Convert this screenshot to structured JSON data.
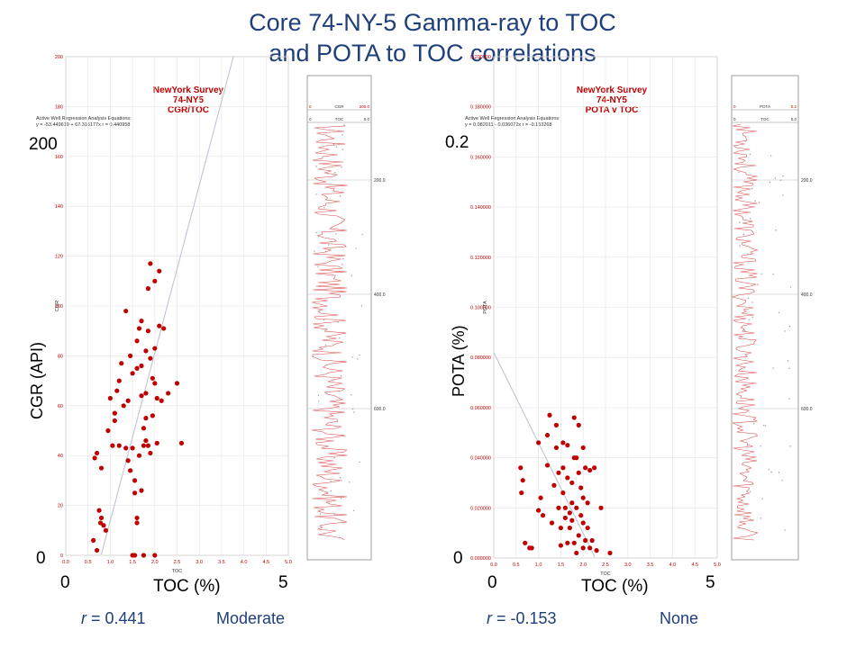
{
  "title": {
    "line1": "Core 74-NY-5 Gamma-ray to TOC",
    "line2": "and POTA to TOC correlations"
  },
  "left": {
    "header": [
      "NewYork Survey",
      "74-NY5",
      "CGR/TOC"
    ],
    "eq_head": "Active Well Regression Analysis Equations:",
    "eq": "y = -53.449619 + 67.316177x    r = 0.440958",
    "ylabel_big": "CGR (API)",
    "ylabel_small": "CGR",
    "xlabel_big": "TOC (%)",
    "xlabel_small": "TOC",
    "y_max": "200",
    "y_min": "0",
    "x_min": "0",
    "x_max": "5",
    "r_label": "r",
    "r_value": " = 0.441",
    "strength": "Moderate",
    "log_track_label1": "CGR",
    "log_track_val1a": "0",
    "log_track_val1b": "200.0",
    "log_track_label2": "TOC",
    "log_track_val2a": "0",
    "log_track_val2b": "5.0",
    "depth_marks": [
      "200.0",
      "400.0",
      "600.0"
    ]
  },
  "right": {
    "header": [
      "NewYork Survey",
      "74-NY5",
      "POTA v TOC"
    ],
    "eq_head": "Active Well Regression Analysis Equations:",
    "eq": "y = 0.082011 - 0.036072x    r = -0.153268",
    "ylabel_big": "POTA (%)",
    "ylabel_small": "POTA",
    "xlabel_big": "TOC (%)",
    "xlabel_small": "TOC",
    "y_max": "0.2",
    "y_min": "0",
    "x_min": "0",
    "x_max": "5",
    "r_label": "r",
    "r_value": " = -0.153",
    "strength": "None",
    "log_track_label1": "POTA",
    "log_track_val1a": "0",
    "log_track_val1b": "0.2",
    "log_track_label2": "TOC",
    "log_track_val2a": "0",
    "log_track_val2b": "5.0",
    "depth_marks": [
      "200.0",
      "400.0",
      "600.0"
    ]
  },
  "colors": {
    "title": "#1f3f7a",
    "points": "#c00000",
    "header": "#c00000",
    "regression": "#c0c4d8"
  },
  "chart_data": [
    {
      "type": "scatter",
      "title": "CGR/TOC",
      "xlabel": "TOC (%)",
      "ylabel": "CGR (API)",
      "xlim": [
        0,
        5
      ],
      "ylim": [
        0,
        200
      ],
      "x_ticks": [
        "0.0",
        "0.5",
        "1.0",
        "1.5",
        "2.0",
        "2.5",
        "3.0",
        "3.5",
        "4.0",
        "4.5",
        "5.0"
      ],
      "y_ticks": [
        "0",
        "20",
        "40",
        "60",
        "80",
        "100",
        "120",
        "140",
        "160",
        "180",
        "200"
      ],
      "regression": {
        "intercept": -53.449619,
        "slope": 67.316177,
        "r": 0.440958
      },
      "points": [
        [
          0.62,
          6
        ],
        [
          0.7,
          2
        ],
        [
          0.75,
          18
        ],
        [
          0.78,
          13
        ],
        [
          0.8,
          15
        ],
        [
          0.85,
          12
        ],
        [
          0.9,
          10
        ],
        [
          0.65,
          39
        ],
        [
          0.7,
          41
        ],
        [
          0.8,
          35
        ],
        [
          0.95,
          50
        ],
        [
          1.0,
          63
        ],
        [
          1.05,
          44
        ],
        [
          1.1,
          57
        ],
        [
          1.15,
          66
        ],
        [
          1.2,
          70
        ],
        [
          1.25,
          77
        ],
        [
          1.3,
          60
        ],
        [
          1.35,
          98
        ],
        [
          1.35,
          43
        ],
        [
          1.4,
          62
        ],
        [
          1.45,
          80
        ],
        [
          1.5,
          73
        ],
        [
          1.5,
          43
        ],
        [
          1.55,
          30
        ],
        [
          1.55,
          25
        ],
        [
          1.6,
          86
        ],
        [
          1.6,
          75
        ],
        [
          1.6,
          15
        ],
        [
          1.65,
          91
        ],
        [
          1.7,
          94
        ],
        [
          1.7,
          76
        ],
        [
          1.7,
          64
        ],
        [
          1.75,
          51
        ],
        [
          1.75,
          44
        ],
        [
          1.8,
          82
        ],
        [
          1.8,
          55
        ],
        [
          1.8,
          46
        ],
        [
          1.85,
          107
        ],
        [
          1.85,
          90
        ],
        [
          1.9,
          117
        ],
        [
          1.9,
          79
        ],
        [
          1.95,
          71
        ],
        [
          1.95,
          56
        ],
        [
          2.0,
          110
        ],
        [
          2.0,
          83
        ],
        [
          2.0,
          69
        ],
        [
          2.05,
          63
        ],
        [
          2.1,
          114
        ],
        [
          2.1,
          92
        ],
        [
          2.15,
          62
        ],
        [
          2.2,
          91
        ],
        [
          2.3,
          65
        ],
        [
          2.5,
          69
        ],
        [
          2.6,
          45
        ],
        [
          1.5,
          0
        ],
        [
          1.55,
          0
        ],
        [
          1.6,
          13
        ],
        [
          1.65,
          40
        ],
        [
          1.7,
          26
        ],
        [
          1.75,
          0
        ],
        [
          1.85,
          44
        ],
        [
          1.4,
          38
        ],
        [
          1.45,
          34
        ],
        [
          1.9,
          41
        ],
        [
          2.0,
          0
        ],
        [
          2.05,
          45
        ],
        [
          1.2,
          44
        ],
        [
          1.1,
          54
        ],
        [
          1.8,
          65
        ]
      ]
    },
    {
      "type": "scatter",
      "title": "POTA v TOC",
      "xlabel": "TOC (%)",
      "ylabel": "POTA (%)",
      "xlim": [
        0,
        5
      ],
      "ylim": [
        0,
        0.2
      ],
      "x_ticks": [
        "0.0",
        "0.5",
        "1.0",
        "1.5",
        "2.0",
        "2.5",
        "3.0",
        "3.5",
        "4.0",
        "4.5",
        "5.0"
      ],
      "y_ticks": [
        "0.000000",
        "0.020000",
        "0.040000",
        "0.060000",
        "0.080000",
        "0.100000",
        "0.120000",
        "0.140000",
        "0.160000",
        "0.180000",
        "0.200000"
      ],
      "regression": {
        "intercept": 0.082011,
        "slope": -0.036072,
        "r": -0.153268
      },
      "points": [
        [
          0.6,
          0.036
        ],
        [
          0.62,
          0.026
        ],
        [
          0.65,
          0.031
        ],
        [
          0.7,
          0.006
        ],
        [
          0.8,
          0.004
        ],
        [
          0.85,
          0.004
        ],
        [
          1.0,
          0.046
        ],
        [
          1.0,
          0.019
        ],
        [
          1.05,
          0.024
        ],
        [
          1.1,
          0.017
        ],
        [
          1.2,
          0.049
        ],
        [
          1.2,
          0.037
        ],
        [
          1.25,
          0.057
        ],
        [
          1.3,
          0.014
        ],
        [
          1.35,
          0.029
        ],
        [
          1.4,
          0.053
        ],
        [
          1.4,
          0.044
        ],
        [
          1.45,
          0.034
        ],
        [
          1.5,
          0.012
        ],
        [
          1.5,
          0.005
        ],
        [
          1.55,
          0.046
        ],
        [
          1.55,
          0.026
        ],
        [
          1.6,
          0.02
        ],
        [
          1.6,
          0.016
        ],
        [
          1.65,
          0.045
        ],
        [
          1.65,
          0.032
        ],
        [
          1.7,
          0.018
        ],
        [
          1.7,
          0.012
        ],
        [
          1.75,
          0.03
        ],
        [
          1.75,
          0.015
        ],
        [
          1.8,
          0.056
        ],
        [
          1.8,
          0.04
        ],
        [
          1.8,
          0.006
        ],
        [
          1.85,
          0.04
        ],
        [
          1.85,
          0.02
        ],
        [
          1.9,
          0.053
        ],
        [
          1.9,
          0.034
        ],
        [
          1.9,
          0.009
        ],
        [
          1.95,
          0.028
        ],
        [
          1.95,
          0.017
        ],
        [
          2.0,
          0.044
        ],
        [
          2.0,
          0.024
        ],
        [
          2.0,
          0.004
        ],
        [
          2.05,
          0.036
        ],
        [
          2.05,
          0.007
        ],
        [
          2.1,
          0.022
        ],
        [
          2.1,
          0.012
        ],
        [
          2.15,
          0.035
        ],
        [
          2.15,
          0.004
        ],
        [
          2.2,
          0.007
        ],
        [
          2.25,
          0.036
        ],
        [
          2.3,
          0.003
        ],
        [
          2.4,
          0.02
        ],
        [
          2.6,
          0.002
        ],
        [
          1.75,
          0.022
        ],
        [
          1.65,
          0.006
        ],
        [
          1.55,
          0.036
        ],
        [
          1.45,
          0.02
        ],
        [
          1.85,
          0.002
        ],
        [
          2.0,
          0.014
        ]
      ]
    }
  ]
}
